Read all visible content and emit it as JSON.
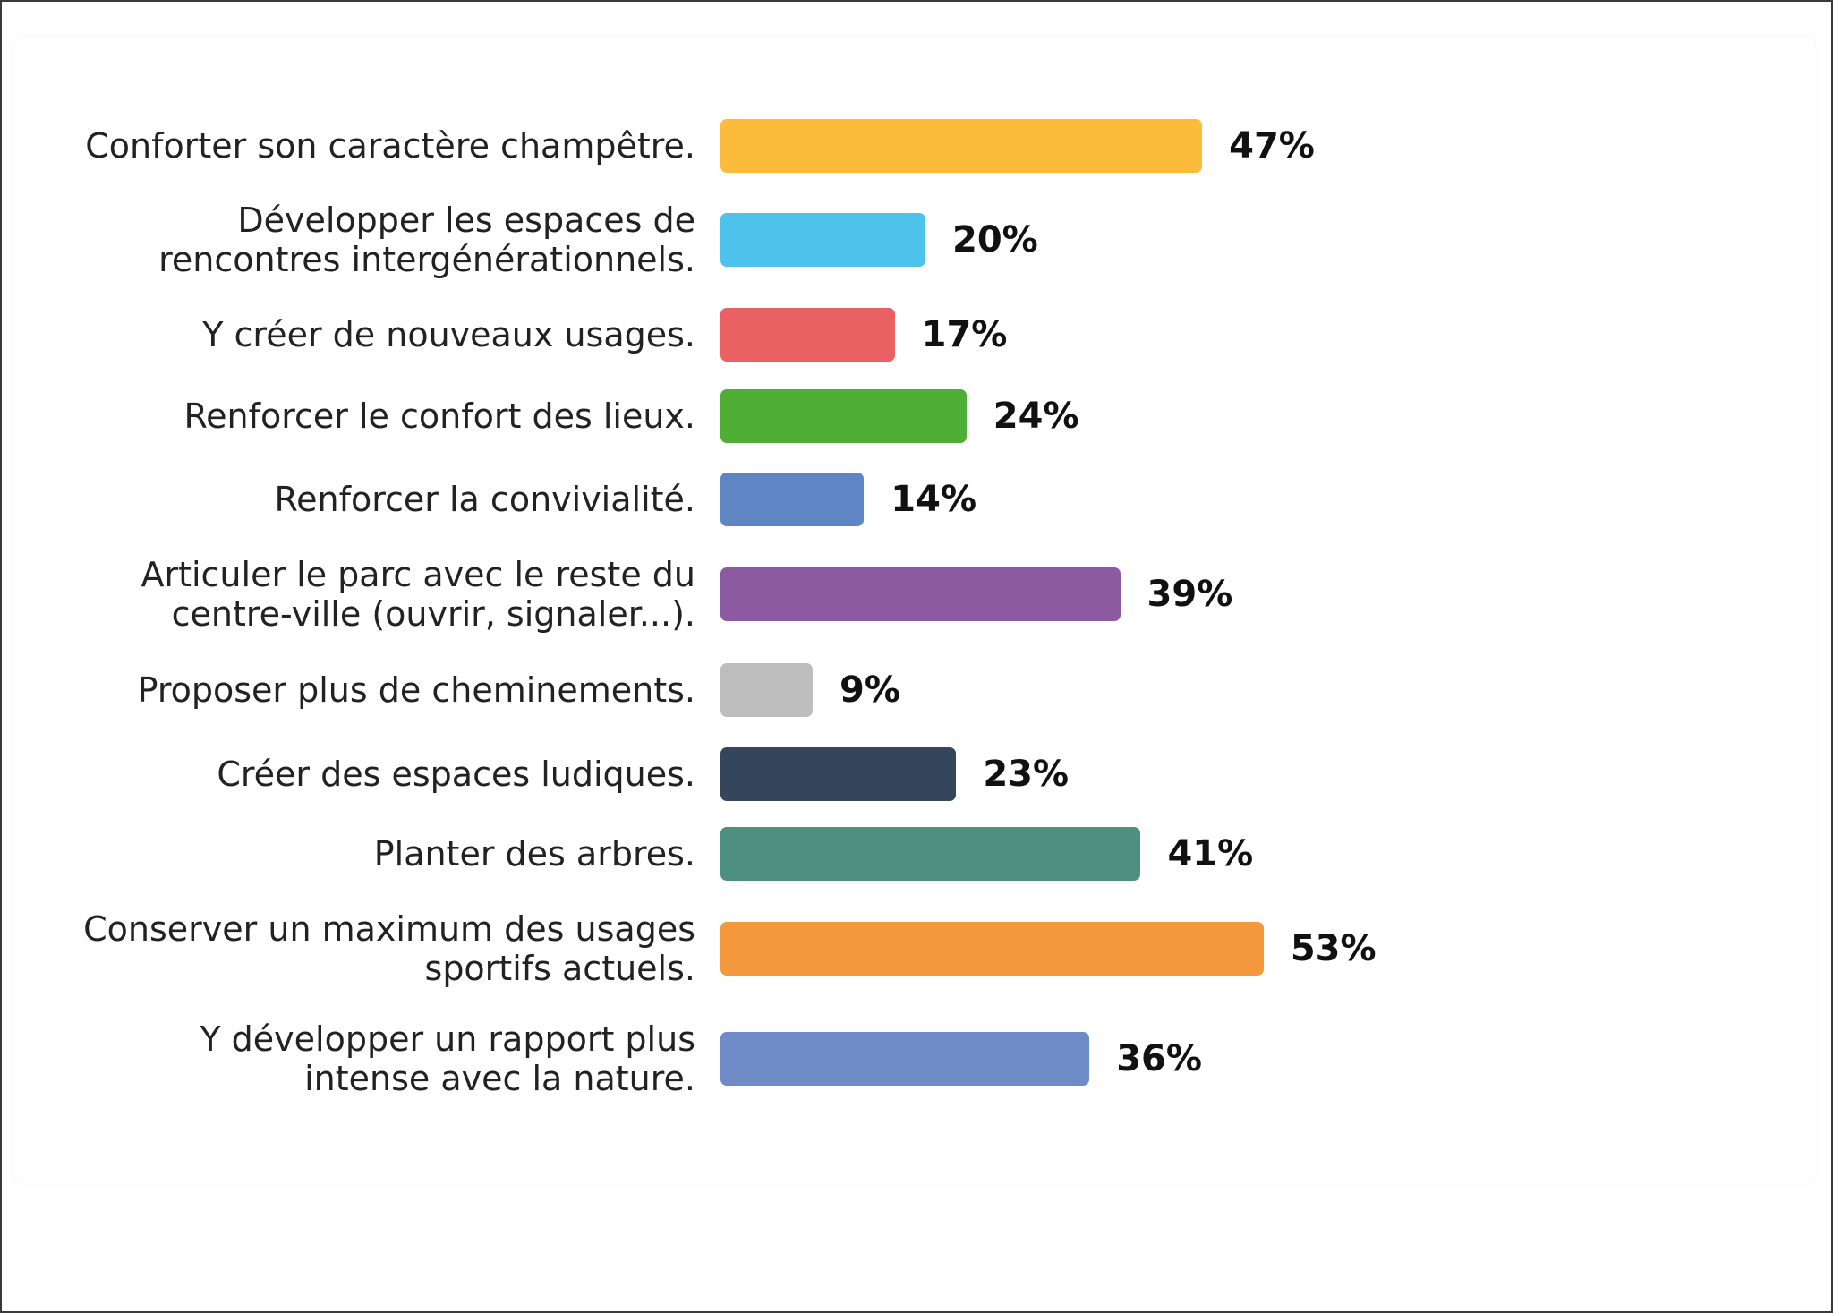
{
  "chart_data": {
    "type": "bar",
    "orientation": "horizontal",
    "title": "",
    "xlabel": "",
    "ylabel": "",
    "xlim": [
      0,
      53
    ],
    "grid": false,
    "legend": "none",
    "unit": "%",
    "categories": [
      "Conforter son caractère champêtre.",
      "Développer les espaces de\nrencontres intergénérationnels.",
      "Y créer de nouveaux usages.",
      "Renforcer le confort des lieux.",
      "Renforcer la convivialité.",
      "Articuler le parc avec le reste du\ncentre-ville (ouvrir, signaler...).",
      "Proposer plus de cheminements.",
      "Créer des espaces ludiques.",
      "Planter des arbres.",
      "Conserver un maximum des usages\nsportifs actuels.",
      "Y développer un rapport plus\nintense avec la nature."
    ],
    "values": [
      47,
      20,
      17,
      24,
      14,
      39,
      9,
      23,
      41,
      53,
      36
    ],
    "value_labels": [
      "47%",
      "20%",
      "17%",
      "24%",
      "14%",
      "39%",
      "9%",
      "23%",
      "41%",
      "53%",
      "36%"
    ],
    "colors": [
      "#fbbb3b",
      "#4dc3ec",
      "#ea6163",
      "#4fae35",
      "#5f85c4",
      "#8b5aa1",
      "#bdbdbd",
      "#34465c",
      "#4e9080",
      "#f4983d",
      "#6e8bc7"
    ]
  }
}
